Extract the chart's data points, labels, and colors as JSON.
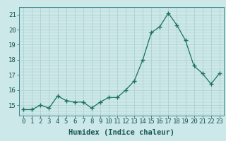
{
  "x": [
    0,
    1,
    2,
    3,
    4,
    5,
    6,
    7,
    8,
    9,
    10,
    11,
    12,
    13,
    14,
    15,
    16,
    17,
    18,
    19,
    20,
    21,
    22,
    23
  ],
  "y": [
    14.7,
    14.7,
    15.0,
    14.8,
    15.6,
    15.3,
    15.2,
    15.2,
    14.8,
    15.2,
    15.5,
    15.5,
    16.0,
    16.6,
    18.0,
    19.8,
    20.2,
    21.1,
    20.3,
    19.3,
    17.6,
    17.1,
    16.4,
    17.1
  ],
  "line_color": "#1a7060",
  "marker": "+",
  "marker_size": 4,
  "bg_color": "#cce8e8",
  "grid_color": "#aacccc",
  "xlabel": "Humidex (Indice chaleur)",
  "xlim": [
    -0.5,
    23.5
  ],
  "ylim": [
    14.3,
    21.5
  ],
  "yticks": [
    15,
    16,
    17,
    18,
    19,
    20,
    21
  ],
  "xticks": [
    0,
    1,
    2,
    3,
    4,
    5,
    6,
    7,
    8,
    9,
    10,
    11,
    12,
    13,
    14,
    15,
    16,
    17,
    18,
    19,
    20,
    21,
    22,
    23
  ],
  "tick_font_size": 6.5,
  "label_font_size": 7.5
}
